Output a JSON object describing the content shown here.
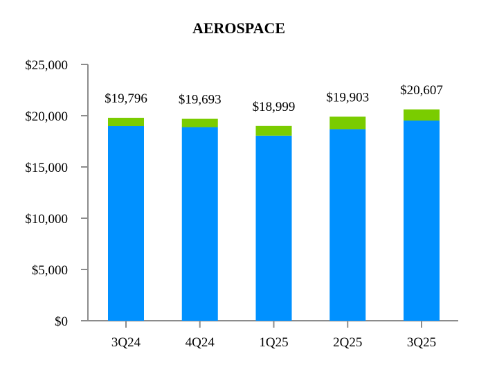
{
  "chart_data": {
    "type": "bar",
    "stacked": true,
    "title": "AEROSPACE",
    "xlabel": "",
    "ylabel": "",
    "categories": [
      "3Q24",
      "4Q24",
      "1Q25",
      "2Q25",
      "3Q25"
    ],
    "series": [
      {
        "values": [
          18986,
          18883,
          18053,
          18687,
          19526
        ],
        "color": "#0091FF"
      },
      {
        "values": [
          810,
          810,
          946,
          1216,
          1081
        ],
        "color": "#7ACC00"
      }
    ],
    "totals": [
      19796,
      19693,
      18999,
      19903,
      20607
    ],
    "total_labels": [
      "$19,796",
      "$19,693",
      "$18,999",
      "$19,903",
      "$20,607"
    ],
    "ylim": [
      0,
      25000
    ],
    "yticks": [
      0,
      5000,
      10000,
      15000,
      20000,
      25000
    ],
    "ytick_labels": [
      "$0",
      "$5,000",
      "$10,000",
      "$15,000",
      "$20,000",
      "$25,000"
    ],
    "grid": false,
    "legend": "none"
  }
}
